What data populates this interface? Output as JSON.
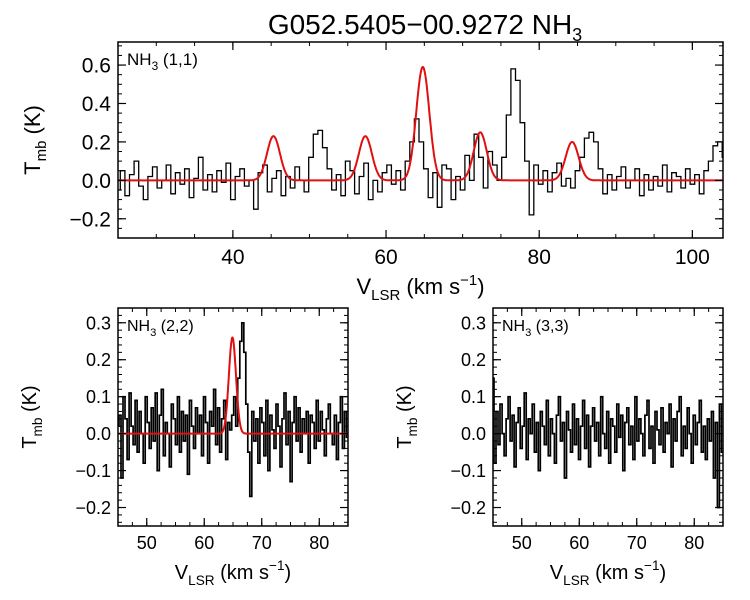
{
  "title_main": "G052.5405−00.9272 NH",
  "title_sub": "3",
  "colors": {
    "spectrum": "#000000",
    "fit": "#e01010"
  },
  "chart_data": [
    {
      "type": "line",
      "panel": "nh3-11",
      "label": {
        "main": "NH",
        "sub": "3",
        "tail": " (1,1)"
      },
      "xlabel": {
        "main": "V",
        "sub": "LSR",
        "tail": " (km s",
        "sup": "−1",
        "close": ")"
      },
      "ylabel": {
        "main": "T",
        "sub": "mb",
        "tail": " (K)"
      },
      "xlim": [
        25,
        104
      ],
      "ylim": [
        -0.3,
        0.72
      ],
      "xticks": [
        40,
        60,
        80,
        100
      ],
      "yticks": [
        -0.2,
        0.0,
        0.2,
        0.4,
        0.6
      ],
      "xticklabels": [
        "40",
        "60",
        "80",
        "100"
      ],
      "yticklabels": [
        "−0.2",
        "0.0",
        "0.2",
        "0.4",
        "0.6"
      ],
      "series": [
        {
          "kind": "spectrum",
          "x0": 25.0,
          "dx": 0.6,
          "y": [
            -0.05,
            0.05,
            -0.08,
            0.03,
            0.1,
            -0.03,
            -0.1,
            0.02,
            0.07,
            -0.04,
            0.0,
            0.08,
            -0.07,
            0.04,
            -0.02,
            0.06,
            -0.09,
            0.01,
            0.12,
            -0.05,
            0.03,
            -0.06,
            0.05,
            -0.01,
            0.09,
            -0.1,
            0.02,
            0.06,
            -0.03,
            0.0,
            -0.15,
            0.04,
            0.08,
            -0.06,
            0.01,
            0.05,
            -0.08,
            0.02,
            -0.04,
            0.07,
            0.0,
            -0.06,
            0.12,
            0.24,
            0.26,
            0.17,
            0.06,
            -0.05,
            0.03,
            -0.08,
            0.1,
            0.05,
            -0.07,
            0.02,
            0.09,
            -0.1,
            0.0,
            -0.06,
            0.04,
            0.08,
            -0.02,
            0.05,
            -0.05,
            0.1,
            0.2,
            0.32,
            0.2,
            0.06,
            -0.09,
            0.04,
            -0.14,
            0.08,
            0.06,
            -0.1,
            0.02,
            -0.05,
            0.13,
            0.0,
            0.24,
            0.12,
            -0.04,
            0.15,
            0.08,
            0.0,
            0.12,
            0.34,
            0.58,
            0.52,
            0.3,
            0.1,
            -0.18,
            0.08,
            -0.02,
            0.05,
            -0.06,
            0.04,
            0.09,
            -0.03,
            0.01,
            -0.04,
            0.05,
            0.12,
            0.22,
            0.25,
            0.2,
            0.06,
            -0.07,
            0.03,
            -0.05,
            0.02,
            0.07,
            -0.04,
            0.0,
            0.06,
            -0.08,
            0.03,
            -0.05,
            0.02,
            -0.03,
            0.08,
            -0.06,
            0.04,
            0.02,
            -0.04,
            0.06,
            -0.02,
            0.03,
            -0.07,
            0.05,
            0.1,
            0.18,
            0.2,
            0.12,
            -0.1,
            0.02,
            -0.06,
            0.08,
            -0.04,
            0.03,
            0.06,
            0.1,
            -0.03,
            0.02,
            -0.08,
            0.1,
            0.0,
            -0.05,
            0.05,
            0.09,
            -0.04,
            0.03,
            -0.06,
            0.07,
            0.02,
            -0.03,
            0.05,
            -0.07,
            0.04,
            0.0,
            -0.05,
            0.09,
            -0.03,
            0.06,
            -0.01,
            0.1,
            0.02,
            -0.02,
            0.08,
            -0.05,
            0.04,
            0.0,
            0.06,
            0.03,
            -0.03
          ]
        },
        {
          "kind": "fit",
          "gaussians": [
            {
              "center": 45.3,
              "amp": 0.23,
              "sigma": 0.85
            },
            {
              "center": 57.3,
              "amp": 0.23,
              "sigma": 0.85
            },
            {
              "center": 64.8,
              "amp": 0.59,
              "sigma": 0.85
            },
            {
              "center": 72.3,
              "amp": 0.25,
              "sigma": 0.85
            },
            {
              "center": 84.3,
              "amp": 0.2,
              "sigma": 0.85
            }
          ]
        }
      ]
    },
    {
      "type": "line",
      "panel": "nh3-22",
      "label": {
        "main": "NH",
        "sub": "3",
        "tail": " (2,2)"
      },
      "xlabel": {
        "main": "V",
        "sub": "LSR",
        "tail": " (km s",
        "sup": "−1",
        "close": ")"
      },
      "ylabel": {
        "main": "T",
        "sub": "mb",
        "tail": " (K)"
      },
      "xlim": [
        45,
        85
      ],
      "ylim": [
        -0.25,
        0.34
      ],
      "xticks": [
        50,
        60,
        70,
        80
      ],
      "yticks": [
        -0.2,
        -0.1,
        0.0,
        0.1,
        0.2,
        0.3
      ],
      "xticklabels": [
        "50",
        "60",
        "70",
        "80"
      ],
      "yticklabels": [
        "−0.2",
        "−0.1",
        "0.0",
        "0.1",
        "0.2",
        "0.3"
      ],
      "series": [
        {
          "kind": "spectrum",
          "x0": 45.0,
          "dx": 0.35,
          "y": [
            0.02,
            0.05,
            -0.12,
            0.1,
            0.04,
            -0.07,
            0.11,
            0.02,
            -0.03,
            0.09,
            -0.05,
            0.06,
            0.0,
            -0.08,
            0.1,
            0.03,
            -0.04,
            0.07,
            -0.02,
            0.11,
            -0.1,
            0.05,
            0.12,
            -0.06,
            0.03,
            0.0,
            -0.09,
            0.08,
            0.04,
            -0.03,
            0.1,
            -0.05,
            0.06,
            -0.02,
            0.05,
            -0.11,
            0.09,
            0.02,
            -0.04,
            0.07,
            0.0,
            0.05,
            -0.06,
            0.1,
            0.03,
            -0.08,
            0.06,
            0.02,
            0.12,
            -0.03,
            0.07,
            -0.05,
            0.04,
            0.09,
            -0.07,
            0.03,
            0.01,
            0.05,
            0.1,
            0.02,
            0.15,
            0.25,
            0.3,
            0.22,
            0.08,
            -0.05,
            -0.17,
            0.06,
            -0.02,
            0.04,
            -0.08,
            0.07,
            0.03,
            -0.06,
            0.09,
            -0.1,
            0.05,
            0.01,
            -0.04,
            0.08,
            0.02,
            -0.09,
            0.04,
            0.11,
            -0.03,
            0.06,
            -0.13,
            0.03,
            0.1,
            -0.02,
            0.07,
            -0.05,
            0.04,
            0.0,
            0.06,
            -0.08,
            0.05,
            0.03,
            -0.04,
            0.09,
            -0.02,
            0.06,
            0.01,
            -0.06,
            0.04,
            0.08,
            0.0,
            -0.03,
            0.05,
            -0.07,
            0.03,
            0.1,
            -0.04,
            0.06,
            -0.01
          ]
        },
        {
          "kind": "fit",
          "gaussians": [
            {
              "center": 64.9,
              "amp": 0.26,
              "sigma": 0.62
            }
          ]
        }
      ]
    },
    {
      "type": "line",
      "panel": "nh3-33",
      "label": {
        "main": "NH",
        "sub": "3",
        "tail": " (3,3)"
      },
      "xlabel": {
        "main": "V",
        "sub": "LSR",
        "tail": " (km s",
        "sup": "−1",
        "close": ")"
      },
      "ylabel": {
        "main": "T",
        "sub": "mb",
        "tail": " (K)"
      },
      "xlim": [
        45,
        85
      ],
      "ylim": [
        -0.25,
        0.34
      ],
      "xticks": [
        50,
        60,
        70,
        80
      ],
      "yticks": [
        -0.2,
        -0.1,
        0.0,
        0.1,
        0.2,
        0.3
      ],
      "xticklabels": [
        "50",
        "60",
        "70",
        "80"
      ],
      "yticklabels": [
        "−0.2",
        "−0.1",
        "0.0",
        "0.1",
        "0.2",
        "0.3"
      ],
      "series": [
        {
          "kind": "spectrum",
          "x0": 45.0,
          "dx": 0.35,
          "y": [
            0.15,
            -0.08,
            0.06,
            -0.03,
            0.08,
            0.0,
            -0.06,
            0.04,
            0.1,
            -0.02,
            0.05,
            -0.09,
            0.03,
            0.07,
            -0.04,
            0.02,
            0.11,
            -0.07,
            0.04,
            0.0,
            0.08,
            -0.05,
            0.03,
            -0.1,
            0.06,
            0.02,
            -0.03,
            0.09,
            -0.06,
            0.04,
            0.0,
            -0.08,
            0.05,
            0.1,
            -0.02,
            0.03,
            -0.12,
            0.06,
            0.01,
            -0.05,
            0.08,
            -0.03,
            0.04,
            -0.07,
            0.02,
            0.09,
            -0.04,
            0.05,
            -0.09,
            0.02,
            0.07,
            -0.02,
            0.03,
            -0.06,
            0.1,
            0.0,
            -0.04,
            0.06,
            -0.08,
            0.04,
            0.02,
            -0.05,
            0.08,
            -0.01,
            0.05,
            -0.1,
            0.03,
            0.07,
            -0.03,
            0.02,
            -0.07,
            0.1,
            -0.02,
            0.04,
            0.0,
            -0.06,
            0.05,
            0.09,
            -0.04,
            0.02,
            -0.08,
            0.06,
            0.01,
            -0.03,
            0.07,
            -0.05,
            0.03,
            0.0,
            0.08,
            -0.09,
            0.04,
            -0.02,
            0.06,
            0.1,
            -0.06,
            0.02,
            -0.04,
            0.07,
            0.0,
            -0.08,
            0.05,
            -0.03,
            0.03,
            0.09,
            -0.05,
            0.02,
            -0.07,
            0.04,
            -0.02,
            0.06,
            -0.12,
            0.03,
            -0.2,
            0.08,
            -0.05
          ]
        }
      ]
    }
  ]
}
